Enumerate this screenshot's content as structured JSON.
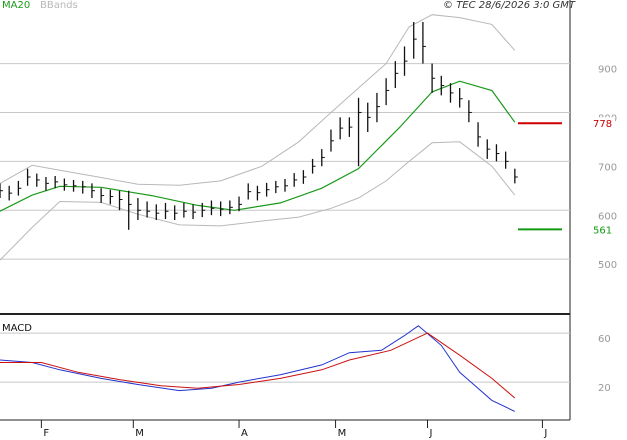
{
  "chart_data": [
    {
      "type": "ohlc",
      "legend": [
        {
          "name": "MA20",
          "color": "#1a9a1a"
        },
        {
          "name": "BBands",
          "color": "#b8b8b8"
        }
      ],
      "copyright": "© TEC 28/6/2026 3:0 GMT",
      "xlim": [
        0,
        124
      ],
      "ylim": [
        396,
        1030
      ],
      "yticks": [
        500,
        600,
        700,
        800,
        900
      ],
      "grid": true,
      "bars": {
        "color": "#111111",
        "x": [
          0,
          2,
          4,
          6,
          8,
          10,
          12,
          14,
          16,
          18,
          20,
          22,
          24,
          26,
          28,
          30,
          32,
          34,
          36,
          38,
          40,
          42,
          44,
          46,
          48,
          50,
          52,
          54,
          56,
          58,
          60,
          62,
          64,
          66,
          68,
          70,
          72,
          74,
          76,
          78,
          80,
          82,
          84,
          86,
          88,
          90,
          92,
          94,
          96,
          98,
          100,
          102,
          104,
          106,
          108,
          110,
          112
        ],
        "high": [
          655,
          650,
          660,
          685,
          675,
          668,
          670,
          665,
          662,
          660,
          655,
          645,
          642,
          640,
          640,
          625,
          618,
          612,
          615,
          610,
          615,
          612,
          615,
          620,
          618,
          620,
          628,
          655,
          650,
          656,
          660,
          664,
          676,
          682,
          705,
          725,
          765,
          790,
          790,
          830,
          820,
          840,
          870,
          905,
          935,
          985,
          985,
          900,
          875,
          860,
          850,
          825,
          780,
          745,
          735,
          720,
          685
        ],
        "low": [
          625,
          620,
          630,
          650,
          648,
          640,
          645,
          640,
          638,
          634,
          625,
          615,
          612,
          600,
          560,
          580,
          585,
          580,
          582,
          580,
          585,
          582,
          586,
          590,
          588,
          592,
          598,
          622,
          620,
          628,
          635,
          638,
          648,
          654,
          675,
          690,
          720,
          745,
          750,
          690,
          760,
          780,
          815,
          850,
          875,
          910,
          900,
          840,
          835,
          820,
          810,
          780,
          730,
          705,
          700,
          685,
          655
        ],
        "close": [
          640,
          635,
          645,
          668,
          662,
          655,
          658,
          652,
          650,
          648,
          640,
          630,
          628,
          622,
          612,
          600,
          598,
          594,
          598,
          594,
          598,
          596,
          600,
          604,
          602,
          606,
          612,
          638,
          636,
          642,
          648,
          650,
          662,
          668,
          690,
          708,
          742,
          768,
          770,
          800,
          790,
          812,
          845,
          880,
          905,
          950,
          935,
          870,
          855,
          840,
          828,
          800,
          750,
          725,
          716,
          700,
          668
        ]
      },
      "ma": {
        "name": "MA20",
        "color": "#1a9a1a",
        "x": [
          0,
          7,
          13,
          22,
          33,
          43,
          51,
          61,
          70,
          78,
          87,
          94,
          100,
          107,
          112
        ],
        "values": [
          598,
          631,
          649,
          647,
          630,
          610,
          600,
          615,
          645,
          685,
          770,
          842,
          864,
          845,
          780
        ]
      },
      "bands": {
        "name": "BBands",
        "color": "#b8b8b8",
        "x": [
          0,
          7,
          13,
          22,
          30,
          39,
          48,
          57,
          65,
          72,
          78,
          84,
          89,
          94,
          100,
          107,
          112
        ],
        "upper": [
          655,
          692,
          682,
          667,
          653,
          651,
          660,
          690,
          740,
          800,
          850,
          900,
          975,
          1000,
          994,
          980,
          927
        ],
        "lower": [
          498,
          565,
          618,
          616,
          592,
          570,
          568,
          578,
          586,
          604,
          625,
          660,
          700,
          738,
          740,
          690,
          631
        ]
      },
      "levels": [
        {
          "value": 778,
          "color": "#cc0000"
        },
        {
          "value": 561,
          "color": "#119911"
        }
      ]
    },
    {
      "type": "line",
      "title": "MACD",
      "xlim": [
        0,
        124
      ],
      "xticks": [
        {
          "value": 9,
          "label": "F"
        },
        {
          "value": 29,
          "label": "M"
        },
        {
          "value": 52,
          "label": "A"
        },
        {
          "value": 73,
          "label": "M"
        },
        {
          "value": 93,
          "label": "J"
        },
        {
          "value": 118,
          "label": "J"
        }
      ],
      "ylim": [
        -11,
        74
      ],
      "yticks": [
        20,
        60
      ],
      "grid": true,
      "series": [
        {
          "color": "#2233cc",
          "x": [
            0,
            7,
            13,
            22,
            30,
            39,
            46,
            52,
            61,
            70,
            76,
            83,
            88,
            91,
            96,
            100,
            107,
            112
          ],
          "values": [
            38,
            36,
            30,
            23,
            18,
            13,
            15,
            20,
            26,
            34,
            44,
            46,
            58,
            66,
            50,
            28,
            5,
            -4
          ]
        },
        {
          "color": "#cc1111",
          "x": [
            0,
            9,
            17,
            26,
            35,
            43,
            52,
            61,
            70,
            76,
            85,
            89,
            93,
            100,
            107,
            112
          ],
          "values": [
            36,
            36,
            28,
            22,
            17,
            15,
            18,
            23,
            30,
            38,
            46,
            53,
            60,
            42,
            23,
            7
          ]
        }
      ]
    }
  ]
}
